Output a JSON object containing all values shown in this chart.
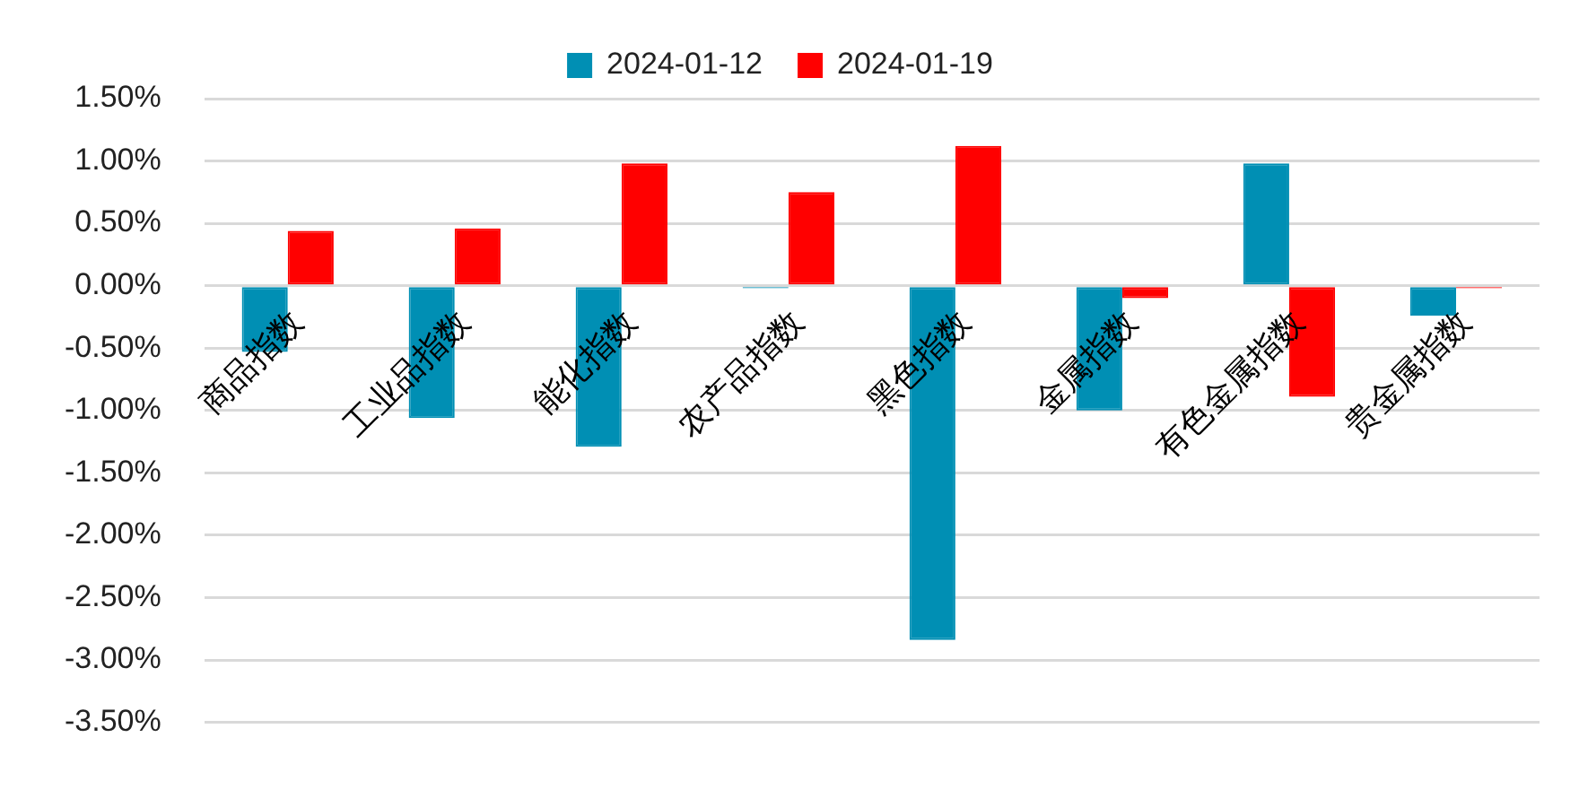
{
  "chart_data": {
    "type": "bar",
    "categories": [
      "商品指数",
      "工业品指数",
      "能化指数",
      "农产品指数",
      "黑色指数",
      "金属指数",
      "有色金属指数",
      "贵金属指数"
    ],
    "series": [
      {
        "name": "2024-01-12",
        "color": "#008fb4",
        "values": [
          -0.53,
          -1.06,
          -1.29,
          -0.02,
          -2.84,
          -1.0,
          0.98,
          -0.24
        ]
      },
      {
        "name": "2024-01-19",
        "color": "#ff0000",
        "values": [
          0.44,
          0.46,
          0.98,
          0.75,
          1.12,
          -0.1,
          -0.89,
          -0.02
        ]
      }
    ],
    "ylim": [
      -3.5,
      1.5
    ],
    "yticks": [
      {
        "value": -3.5,
        "label": "-3.50%"
      },
      {
        "value": -3.0,
        "label": "-3.00%"
      },
      {
        "value": -2.5,
        "label": "-2.50%"
      },
      {
        "value": -2.0,
        "label": "-2.00%"
      },
      {
        "value": -1.5,
        "label": "-1.50%"
      },
      {
        "value": -1.0,
        "label": "-1.00%"
      },
      {
        "value": -0.5,
        "label": "-0.50%"
      },
      {
        "value": 0.0,
        "label": "0.00%"
      },
      {
        "value": 0.5,
        "label": "0.50%"
      },
      {
        "value": 1.0,
        "label": "1.00%"
      },
      {
        "value": 1.5,
        "label": "1.50%"
      }
    ],
    "grid": "y",
    "legend": "top"
  }
}
